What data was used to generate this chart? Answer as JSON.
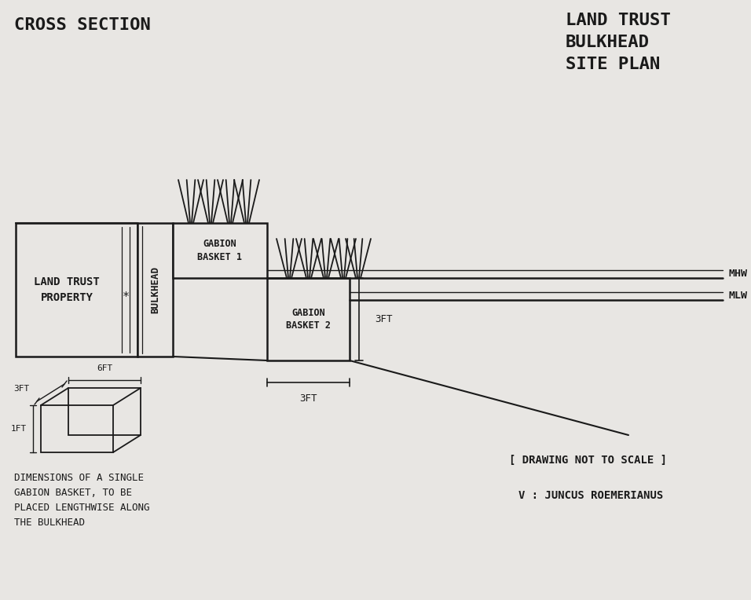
{
  "title_left": "CROSS SECTION",
  "title_right": "LAND TRUST\nBULKHEAD\nSITE PLAN",
  "bg_color": "#e8e6e3",
  "line_color": "#1a1a1a",
  "label_land_trust": "LAND TRUST\nPROPERTY",
  "label_bulkhead": "BULKHEAD",
  "label_gabion1": "GABION\nBASKET 1",
  "label_gabion2": "GABION\nBASKET 2",
  "label_mhw": "MHW",
  "label_mlw": "MLW",
  "label_3ft_h": "3FT",
  "label_3ft_w": "3FT",
  "label_drawing_scale": "[ DRAWING NOT TO SCALE ]",
  "label_juncus": "V : JUNCUS ROEMERIANUS",
  "label_dimensions_caption": "DIMENSIONS OF A SINGLE\nGABION BASKET, TO BE\nPLACED LENGTHWISE ALONG\nTHE BULKHEAD",
  "gabion_dim_6ft": "6FT",
  "gabion_dim_3ft": "3FT",
  "gabion_dim_1ft": "1FT"
}
